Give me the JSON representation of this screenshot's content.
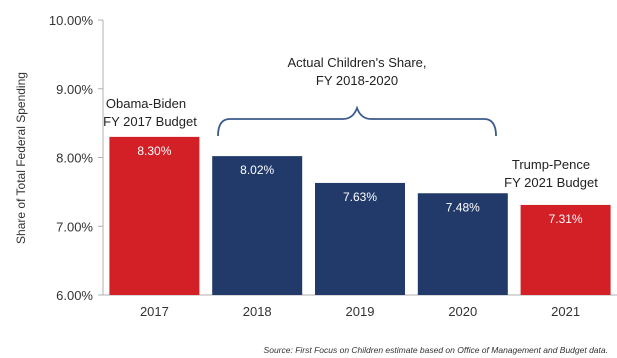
{
  "chart_data": {
    "type": "bar",
    "categories": [
      "2017",
      "2018",
      "2019",
      "2020",
      "2021"
    ],
    "values": [
      8.3,
      8.02,
      7.63,
      7.48,
      7.31
    ],
    "data_labels": [
      "8.30%",
      "8.02%",
      "7.63%",
      "7.48%",
      "7.31%"
    ],
    "colors": [
      "#d32027",
      "#223a6a",
      "#223a6a",
      "#223a6a",
      "#d32027"
    ],
    "ylabel": "Share of Total Federal Spending",
    "xlabel": "",
    "ylim": [
      6,
      10
    ],
    "yticks": [
      6,
      7,
      8,
      9,
      10
    ],
    "ytick_labels": [
      "6.00%",
      "7.00%",
      "8.00%",
      "9.00%",
      "10.00%"
    ],
    "grid": false,
    "annotations": {
      "obama": [
        "Obama-Biden",
        "FY 2017 Budget"
      ],
      "actual": [
        "Actual Children's Share,",
        "FY 2018-2020"
      ],
      "trump": [
        "Trump-Pence",
        "FY 2021 Budget"
      ]
    },
    "source": "Source: First Focus on Children estimate based on Office of Management and Budget data."
  }
}
